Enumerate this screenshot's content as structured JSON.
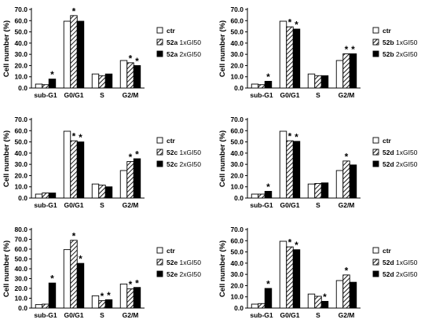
{
  "chart_data": [
    {
      "type": "bar",
      "categories": [
        "sub-G1",
        "G0/G1",
        "S",
        "G2/M"
      ],
      "ylabel": "Cell number (%)",
      "ylim": [
        0,
        70
      ],
      "yticks": [
        "0.0",
        "10.0",
        "20.0",
        "30.0",
        "40.0",
        "50.0",
        "60.0",
        "70.0"
      ],
      "series": [
        {
          "name": "ctr",
          "compound": "",
          "dose": "",
          "values": [
            3.5,
            59.5,
            12.5,
            24.5
          ],
          "significant": [
            false,
            false,
            false,
            false
          ]
        },
        {
          "name": "52a 1xGI50",
          "compound": "52a",
          "dose": "1xGI50",
          "values": [
            3.0,
            64.5,
            11.0,
            22.5
          ],
          "significant": [
            false,
            true,
            false,
            true
          ]
        },
        {
          "name": "52a 2xGI50",
          "compound": "52a",
          "dose": "2xGI50",
          "values": [
            8.0,
            59.5,
            12.5,
            20.0
          ],
          "significant": [
            true,
            false,
            false,
            true
          ]
        }
      ]
    },
    {
      "type": "bar",
      "categories": [
        "sub-G1",
        "G0/G1",
        "S",
        "G2/M"
      ],
      "ylabel": "Cell number (%)",
      "ylim": [
        0,
        70
      ],
      "yticks": [
        "0.0",
        "10.0",
        "20.0",
        "30.0",
        "40.0",
        "50.0",
        "60.0",
        "70.0"
      ],
      "series": [
        {
          "name": "ctr",
          "compound": "",
          "dose": "",
          "values": [
            3.5,
            59.5,
            12.5,
            24.5
          ],
          "significant": [
            false,
            false,
            false,
            false
          ]
        },
        {
          "name": "52b 1xGI50",
          "compound": "52b",
          "dose": "1xGI50",
          "values": [
            3.0,
            54.5,
            11.0,
            30.5
          ],
          "significant": [
            false,
            true,
            false,
            true
          ]
        },
        {
          "name": "52b 2xGI50",
          "compound": "52b",
          "dose": "2xGI50",
          "values": [
            6.0,
            52.5,
            11.0,
            30.5
          ],
          "significant": [
            true,
            true,
            false,
            true
          ]
        }
      ]
    },
    {
      "type": "bar",
      "categories": [
        "sub-G1",
        "G0/G1",
        "S",
        "G2/M"
      ],
      "ylabel": "Cell number (%)",
      "ylim": [
        0,
        70
      ],
      "yticks": [
        "0.0",
        "10.0",
        "20.0",
        "30.0",
        "40.0",
        "50.0",
        "60.0",
        "70.0"
      ],
      "series": [
        {
          "name": "ctr",
          "compound": "",
          "dose": "",
          "values": [
            3.5,
            59.5,
            12.5,
            24.5
          ],
          "significant": [
            false,
            false,
            false,
            false
          ]
        },
        {
          "name": "52c 1xGI50",
          "compound": "52c",
          "dose": "1xGI50",
          "values": [
            4.5,
            51.0,
            11.5,
            32.5
          ],
          "significant": [
            false,
            true,
            false,
            true
          ]
        },
        {
          "name": "52c 2xGI50",
          "compound": "52c",
          "dose": "2xGI50",
          "values": [
            4.5,
            50.0,
            10.0,
            35.0
          ],
          "significant": [
            false,
            true,
            false,
            true
          ]
        }
      ]
    },
    {
      "type": "bar",
      "categories": [
        "sub-G1",
        "G0/G1",
        "S",
        "G2/M"
      ],
      "ylabel": "Cell number (%)",
      "ylim": [
        0,
        70
      ],
      "yticks": [
        "0.0",
        "10.0",
        "20.0",
        "30.0",
        "40.0",
        "50.0",
        "60.0",
        "70.0"
      ],
      "series": [
        {
          "name": "ctr",
          "compound": "",
          "dose": "",
          "values": [
            3.5,
            59.5,
            12.5,
            24.5
          ],
          "significant": [
            false,
            false,
            false,
            false
          ]
        },
        {
          "name": "52d 1xGI50",
          "compound": "52d",
          "dose": "1xGI50",
          "values": [
            3.5,
            51.0,
            13.0,
            33.0
          ],
          "significant": [
            false,
            true,
            false,
            true
          ]
        },
        {
          "name": "52d 2xGI50",
          "compound": "52d",
          "dose": "2xGI50",
          "values": [
            6.0,
            50.5,
            13.5,
            29.5
          ],
          "significant": [
            true,
            true,
            false,
            false
          ]
        }
      ]
    },
    {
      "type": "bar",
      "categories": [
        "sub-G1",
        "G0/G1",
        "S",
        "G2/M"
      ],
      "ylabel": "Cell number (%)",
      "ylim": [
        0,
        80
      ],
      "yticks": [
        "0.0",
        "10.0",
        "20.0",
        "30.0",
        "40.0",
        "50.0",
        "60.0",
        "70.0",
        "80.0"
      ],
      "series": [
        {
          "name": "ctr",
          "compound": "",
          "dose": "",
          "values": [
            3.5,
            59.5,
            12.5,
            24.5
          ],
          "significant": [
            false,
            false,
            false,
            false
          ]
        },
        {
          "name": "52e 1xGI50",
          "compound": "52e",
          "dose": "1xGI50",
          "values": [
            4.0,
            69.0,
            7.5,
            19.5
          ],
          "significant": [
            false,
            true,
            true,
            true
          ]
        },
        {
          "name": "52e 2xGI50",
          "compound": "52e",
          "dose": "2xGI50",
          "values": [
            25.5,
            45.5,
            8.5,
            21.0
          ],
          "significant": [
            true,
            true,
            true,
            true
          ]
        }
      ]
    },
    {
      "type": "bar",
      "categories": [
        "sub-G1",
        "G0/G1",
        "S",
        "G2/M"
      ],
      "ylabel": "Cell number (%)",
      "ylim": [
        0,
        70
      ],
      "yticks": [
        "0.0",
        "10.0",
        "20.0",
        "30.0",
        "40.0",
        "50.0",
        "60.0",
        "70.0"
      ],
      "series": [
        {
          "name": "ctr",
          "compound": "",
          "dose": "",
          "values": [
            3.5,
            59.5,
            12.5,
            24.5
          ],
          "significant": [
            false,
            false,
            false,
            false
          ]
        },
        {
          "name": "52d 1xGI50",
          "compound": "52d",
          "dose": "1xGI50",
          "values": [
            4.0,
            54.5,
            10.5,
            29.5
          ],
          "significant": [
            false,
            true,
            false,
            true
          ]
        },
        {
          "name": "52d 2xGI50",
          "compound": "52d",
          "dose": "2xGI50",
          "values": [
            17.5,
            52.0,
            6.0,
            23.0
          ],
          "significant": [
            true,
            true,
            true,
            false
          ]
        }
      ]
    }
  ],
  "significance_mark": "*",
  "legend_label_dose1": "1xGI50",
  "legend_label_dose2": "2xGI50",
  "colors": {
    "bar_outline": "#000000",
    "ctr_fill": "#ffffff",
    "solid_fill": "#000000",
    "hatch": "#000000"
  }
}
